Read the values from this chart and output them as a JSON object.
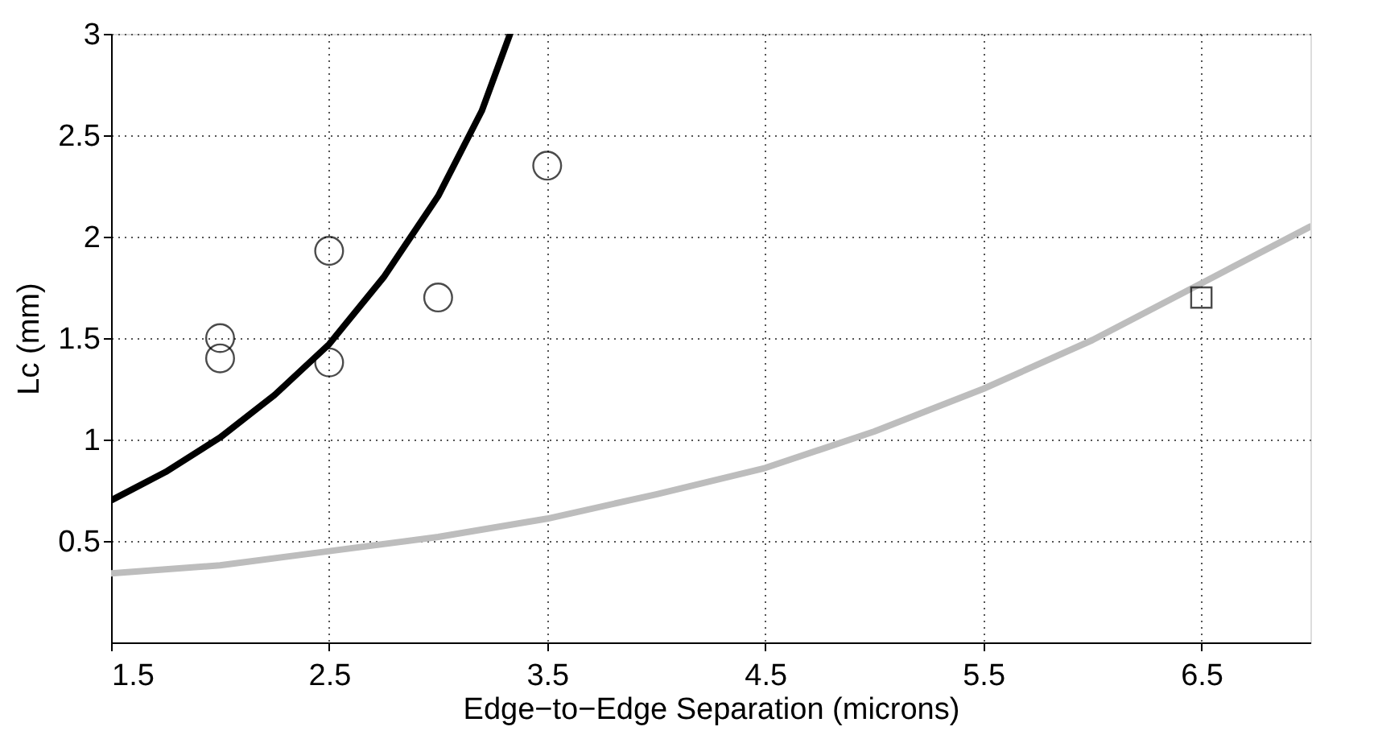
{
  "chart_data": {
    "type": "scatter",
    "xlabel": "Edge−to−Edge Separation (microns)",
    "ylabel": "Lc (mm)",
    "xlim": [
      1.5,
      7
    ],
    "xticks": [
      1.5,
      2.5,
      3.5,
      4.5,
      5.5,
      6.5
    ],
    "ylim": [
      0,
      3
    ],
    "yticks": [
      0.5,
      1,
      1.5,
      2,
      2.5,
      3
    ],
    "grid": true,
    "series": [
      {
        "type": "line",
        "color": "#000000",
        "marker": "none",
        "line_style": "solid",
        "x": [
          1.5,
          1.75,
          2,
          2.25,
          2.5,
          2.75,
          3,
          3.2,
          3.33
        ],
        "values": [
          0.7,
          0.84,
          1.01,
          1.22,
          1.47,
          1.8,
          2.2,
          2.62,
          3.0
        ]
      },
      {
        "type": "line",
        "color": "#bdbdbd",
        "marker": "none",
        "line_style": "solid",
        "x": [
          1.5,
          2,
          2.5,
          3,
          3.5,
          4,
          4.5,
          5,
          5.5,
          6,
          6.5,
          7
        ],
        "values": [
          0.34,
          0.38,
          0.45,
          0.52,
          0.61,
          0.73,
          0.86,
          1.04,
          1.25,
          1.49,
          1.77,
          2.05
        ]
      },
      {
        "color": "#000000",
        "marker": "circle",
        "x": [
          2,
          2,
          2.5,
          2.5,
          3,
          3.5
        ],
        "values": [
          1.5,
          1.4,
          1.93,
          1.38,
          1.7,
          2.35
        ]
      },
      {
        "color": "#000000",
        "marker": "square",
        "x": [
          6.5
        ],
        "values": [
          1.7
        ]
      }
    ]
  }
}
